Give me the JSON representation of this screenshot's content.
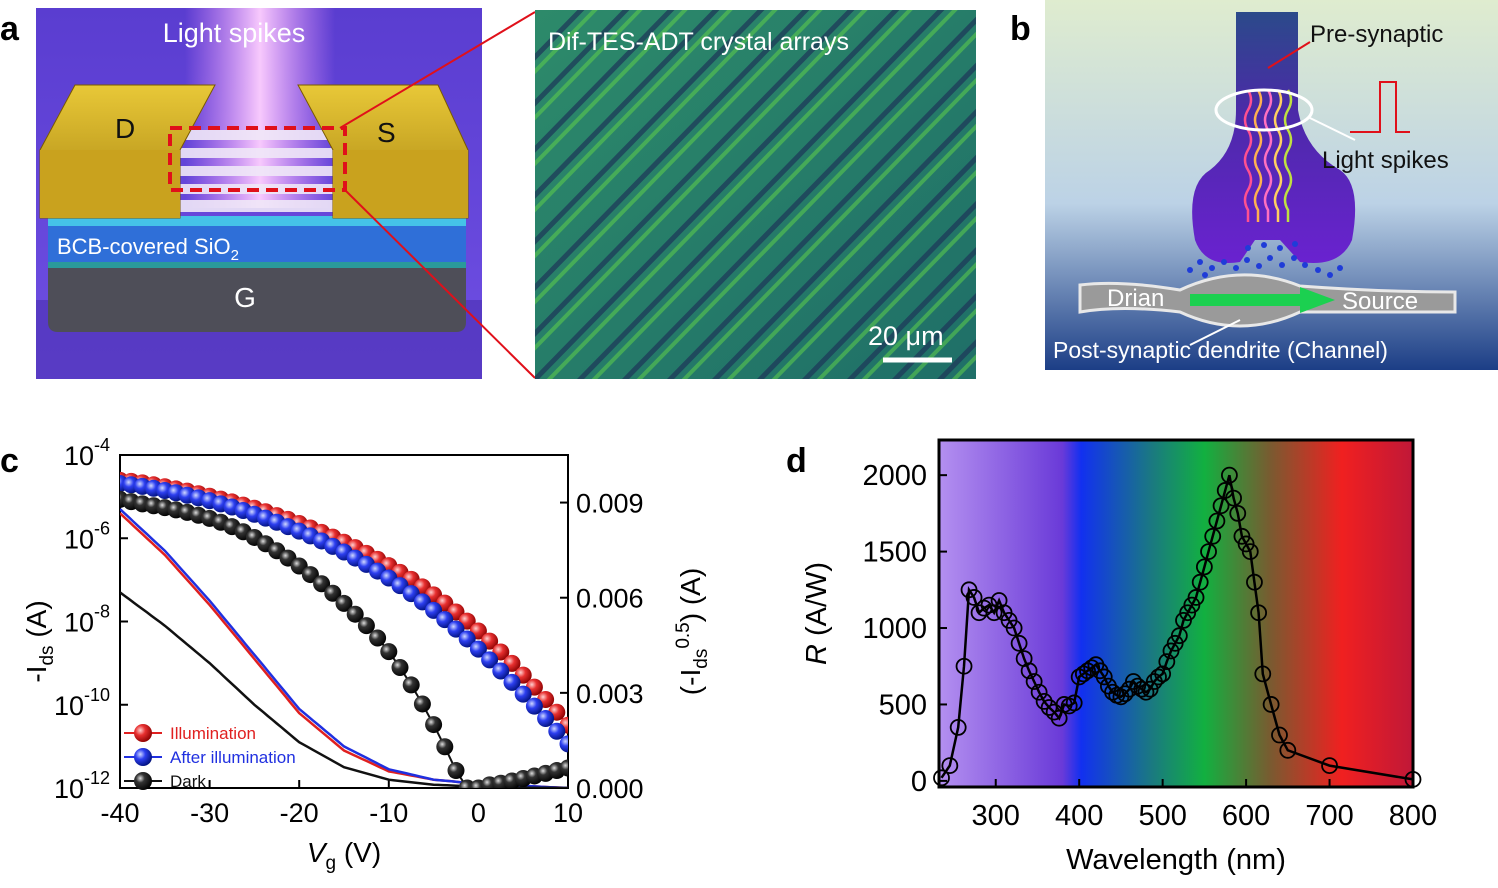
{
  "panels": {
    "a": {
      "letter": "a",
      "device_heading": "Light spikes",
      "drain": "D",
      "source": "S",
      "dielectric": "BCB-covered SiO",
      "dielectric_sub": "2",
      "gate": "G",
      "micrograph_heading": "Dif-TES-ADT crystal arrays",
      "scale_bar": "20 μm"
    },
    "b": {
      "letter": "b",
      "pre": "Pre-synaptic",
      "spikes": "Light spikes",
      "drain": "Drian",
      "source": "Source",
      "post": "Post-synaptic dendrite (Channel)"
    },
    "c": {
      "letter": "c"
    },
    "d": {
      "letter": "d"
    }
  },
  "colors": {
    "illumination": "#e02020",
    "after_illumination": "#2030e0",
    "dark": "#111111"
  },
  "chart_data": [
    {
      "type": "line",
      "panel": "c",
      "xlabel": "V",
      "xlabel_sub": "g",
      "xlabel_unit": " (V)",
      "ylabel_left": "-I",
      "ylabel_left_sub": "ds",
      "ylabel_left_unit": " (A)",
      "ylabel_right": "(-I",
      "ylabel_right_sub": "ds",
      "ylabel_right_sup": "0.5",
      "ylabel_right_unit": ") (A)",
      "xlim": [
        -40,
        10
      ],
      "xticks": [
        "-40",
        "-30",
        "-20",
        "-10",
        "0",
        "10"
      ],
      "ylim_left_log10": [
        -12,
        -4
      ],
      "yticks_left": [
        {
          "base": "10",
          "exp": "-4",
          "value": -4
        },
        {
          "base": "10",
          "exp": "-6",
          "value": -6
        },
        {
          "base": "10",
          "exp": "-8",
          "value": -8
        },
        {
          "base": "10",
          "exp": "-10",
          "value": -10
        },
        {
          "base": "10",
          "exp": "-12",
          "value": -12
        }
      ],
      "ylim_right": [
        0,
        0.0105
      ],
      "yticks_right": [
        "0.000",
        "0.003",
        "0.006",
        "0.009"
      ],
      "legend_position": "bottom-left",
      "x": [
        -40,
        -38.75,
        -37.5,
        -36.25,
        -35,
        -33.75,
        -32.5,
        -31.25,
        -30,
        -28.75,
        -27.5,
        -26.25,
        -25,
        -23.75,
        -22.5,
        -21.25,
        -20,
        -18.75,
        -17.5,
        -16.25,
        -15,
        -13.75,
        -12.5,
        -11.25,
        -10,
        -8.75,
        -7.5,
        -6.25,
        -5,
        -3.75,
        -2.5,
        -1.25,
        0,
        1.25,
        2.5,
        3.75,
        5,
        6.25,
        7.5,
        8.75,
        10
      ],
      "series": [
        {
          "name": "Illumination",
          "color_key": "illumination",
          "log_curve": {
            "x": [
              -40,
              -35,
              -30,
              -25,
              -20,
              -15,
              -10,
              -5,
              0,
              5,
              10
            ],
            "log10": [
              -5.4,
              -6.4,
              -7.6,
              -8.9,
              -10.2,
              -11.1,
              -11.6,
              -11.8,
              -11.9,
              -11.95,
              -12
            ]
          },
          "sqrt_values": [
            0.0097,
            0.00967,
            0.00962,
            0.00956,
            0.0095,
            0.00943,
            0.00936,
            0.00928,
            0.0092,
            0.00911,
            0.00902,
            0.00892,
            0.00882,
            0.00871,
            0.00859,
            0.00847,
            0.00834,
            0.0082,
            0.00806,
            0.00791,
            0.00775,
            0.00758,
            0.0074,
            0.00721,
            0.00701,
            0.0068,
            0.00658,
            0.00634,
            0.00609,
            0.00583,
            0.00555,
            0.00526,
            0.00495,
            0.00463,
            0.00429,
            0.00393,
            0.00356,
            0.00318,
            0.00279,
            0.00239,
            0.00198
          ]
        },
        {
          "name": "After illumination",
          "color_key": "after_illumination",
          "log_curve": {
            "x": [
              -40,
              -35,
              -30,
              -25,
              -20,
              -15,
              -10,
              -5,
              0,
              5,
              10
            ],
            "log10": [
              -5.3,
              -6.3,
              -7.5,
              -8.8,
              -10.1,
              -11.0,
              -11.55,
              -11.8,
              -11.9,
              -11.95,
              -12
            ]
          },
          "sqrt_values": [
            0.0096,
            0.00956,
            0.00951,
            0.00945,
            0.00938,
            0.00931,
            0.00923,
            0.00915,
            0.00906,
            0.00896,
            0.00886,
            0.00875,
            0.00863,
            0.00851,
            0.00838,
            0.00824,
            0.0081,
            0.00795,
            0.00779,
            0.00762,
            0.00744,
            0.00725,
            0.00705,
            0.00684,
            0.00662,
            0.00638,
            0.00613,
            0.00587,
            0.0056,
            0.00531,
            0.00501,
            0.0047,
            0.00438,
            0.00404,
            0.00369,
            0.00333,
            0.00296,
            0.00258,
            0.00219,
            0.00179,
            0.00139
          ]
        },
        {
          "name": "Dark",
          "color_key": "dark",
          "log_curve": {
            "x": [
              -40,
              -35,
              -30,
              -25,
              -20,
              -15,
              -10,
              -5,
              0,
              5,
              10
            ],
            "log10": [
              -7.3,
              -8.1,
              -9.0,
              -10.0,
              -10.9,
              -11.5,
              -11.8,
              -11.92,
              -11.97,
              -11.99,
              -12
            ]
          },
          "sqrt_values": [
            0.0091,
            0.00903,
            0.00896,
            0.0089,
            0.00884,
            0.00877,
            0.00869,
            0.0086,
            0.0085,
            0.00838,
            0.00824,
            0.00808,
            0.0079,
            0.0077,
            0.00748,
            0.00725,
            0.007,
            0.00673,
            0.00644,
            0.00614,
            0.00582,
            0.00548,
            0.00512,
            0.00473,
            0.0043,
            0.0038,
            0.00325,
            0.00265,
            0.002,
            0.0013,
            0.00055,
            0.0,
            0.0,
            0.0001,
            0.00015,
            0.00022,
            0.0003,
            0.00038,
            0.00046,
            0.00055,
            0.00063
          ]
        }
      ]
    },
    {
      "type": "line",
      "panel": "d",
      "xlabel": "Wavelength (nm)",
      "ylabel": "R",
      "ylabel_unit": " (A/W)",
      "xlim": [
        232,
        800
      ],
      "ylim": [
        -40,
        2230
      ],
      "xticks": [
        300,
        400,
        500,
        600,
        700,
        800
      ],
      "yticks": [
        0,
        500,
        1000,
        1500,
        2000
      ],
      "grid": false,
      "x": [
        235,
        245,
        255,
        262,
        268,
        274,
        280,
        286,
        292,
        298,
        304,
        310,
        316,
        322,
        328,
        334,
        340,
        346,
        352,
        358,
        364,
        370,
        376,
        382,
        388,
        394,
        400,
        405,
        410,
        415,
        420,
        425,
        430,
        435,
        440,
        445,
        450,
        455,
        460,
        465,
        470,
        475,
        480,
        485,
        490,
        495,
        500,
        505,
        510,
        515,
        520,
        525,
        530,
        535,
        540,
        545,
        550,
        555,
        560,
        565,
        570,
        575,
        580,
        585,
        590,
        595,
        600,
        605,
        610,
        615,
        620,
        630,
        640,
        650,
        700,
        800
      ],
      "values": [
        20,
        100,
        350,
        750,
        1250,
        1200,
        1100,
        1130,
        1150,
        1100,
        1180,
        1100,
        1050,
        1000,
        900,
        800,
        720,
        650,
        580,
        520,
        480,
        450,
        410,
        500,
        490,
        510,
        680,
        700,
        720,
        740,
        760,
        720,
        680,
        620,
        580,
        560,
        550,
        570,
        600,
        650,
        620,
        600,
        580,
        600,
        650,
        680,
        700,
        780,
        850,
        900,
        950,
        1050,
        1100,
        1150,
        1200,
        1300,
        1400,
        1500,
        1600,
        1700,
        1800,
        1900,
        2000,
        1850,
        1750,
        1600,
        1550,
        1500,
        1300,
        1100,
        700,
        500,
        300,
        200,
        100,
        10
      ]
    }
  ]
}
